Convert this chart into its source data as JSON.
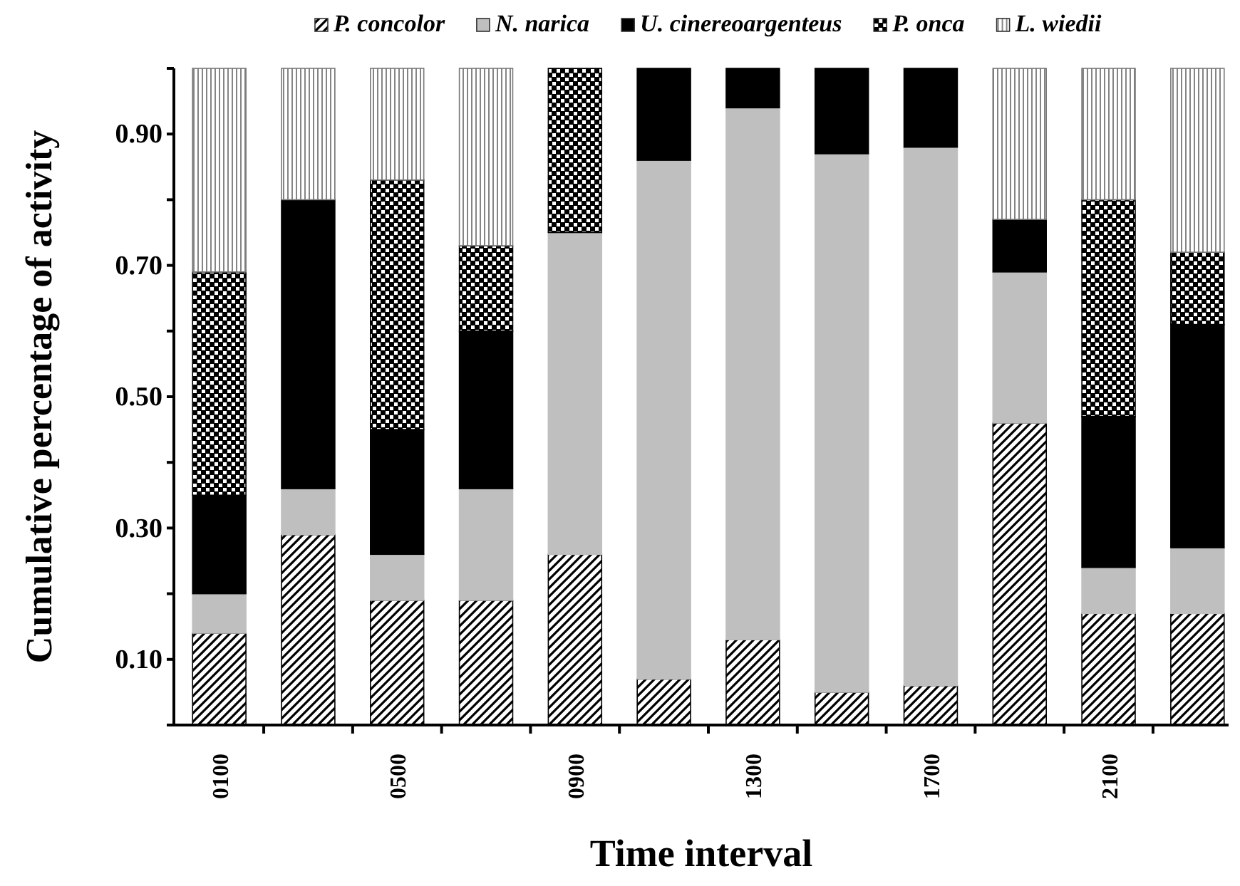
{
  "chart_data": {
    "type": "bar",
    "stacked": true,
    "xlabel": "Time interval",
    "ylabel": "Cumulative percentage of activity",
    "categories": [
      "0100",
      null,
      "0500",
      null,
      "0900",
      null,
      "1300",
      null,
      "1700",
      null,
      "2100",
      null
    ],
    "series": [
      {
        "name": "P. concolor",
        "color": "#000000",
        "values": [
          0.14,
          0.29,
          0.19,
          0.19,
          0.26,
          0.07,
          0.13,
          0.05,
          0.06,
          0.46,
          0.17,
          0.17
        ]
      },
      {
        "name": "N. narica",
        "color": "#bfbfbf",
        "values": [
          0.06,
          0.07,
          0.07,
          0.17,
          0.49,
          0.79,
          0.81,
          0.82,
          0.82,
          0.23,
          0.07,
          0.1
        ]
      },
      {
        "name": "U. cinereoargenteus",
        "color": "#000000",
        "values": [
          0.15,
          0.44,
          0.19,
          0.24,
          0,
          0.14,
          0.06,
          0.13,
          0.12,
          0.08,
          0.23,
          0.34
        ]
      },
      {
        "name": "P. onca",
        "color": "#000000",
        "values": [
          0.34,
          0,
          0.38,
          0.13,
          0.25,
          0,
          0,
          0,
          0,
          0,
          0.33,
          0.11
        ]
      },
      {
        "name": "L. wiedii",
        "color": "#777777",
        "values": [
          0.31,
          0.2,
          0.17,
          0.27,
          0,
          0,
          0,
          0,
          0,
          0.23,
          0.2,
          0.28
        ]
      }
    ],
    "ylim": [
      0,
      1
    ],
    "yticks": [
      {
        "value": 0,
        "label": null
      },
      {
        "value": 0.1,
        "label": "0.10"
      },
      {
        "value": 0.2,
        "label": null
      },
      {
        "value": 0.3,
        "label": "0.30"
      },
      {
        "value": 0.4,
        "label": null
      },
      {
        "value": 0.5,
        "label": "0.50"
      },
      {
        "value": 0.6,
        "label": null
      },
      {
        "value": 0.7,
        "label": "0.70"
      },
      {
        "value": 0.8,
        "label": null
      },
      {
        "value": 0.9,
        "label": "0.90"
      },
      {
        "value": 1,
        "label": null
      }
    ],
    "grid": false,
    "legend": "top"
  }
}
